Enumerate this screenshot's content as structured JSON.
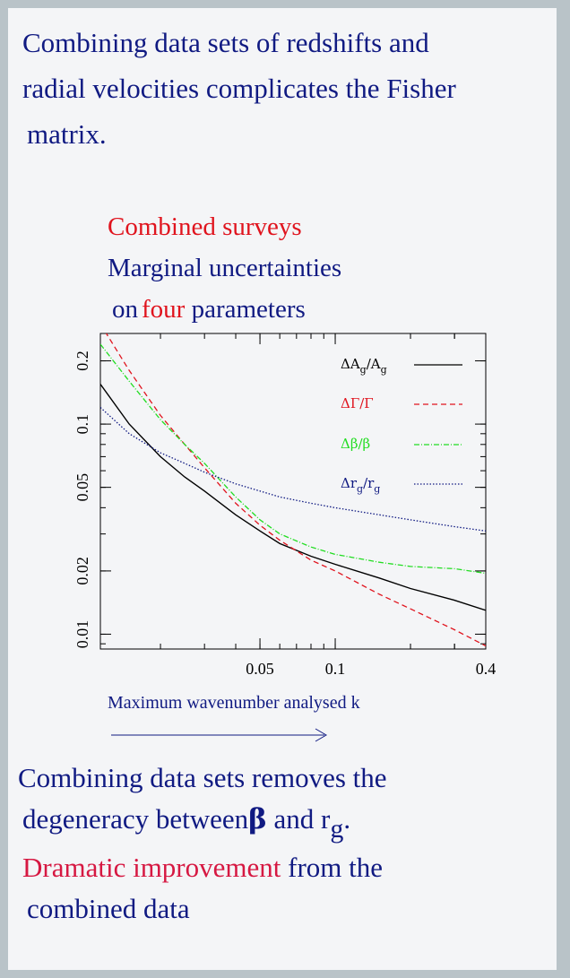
{
  "intro": {
    "line1": "Combining data sets of redshifts and",
    "line2": "radial velocities complicates the Fisher",
    "line3": "matrix."
  },
  "heading": {
    "line1": "Combined surveys",
    "line2": "Marginal uncertainties",
    "line3_on": "on",
    "line3_four": "four",
    "line3_rest": "parameters"
  },
  "colors": {
    "navy": "#101a82",
    "red": "#e0141e",
    "crimson": "#d61842",
    "green": "#22dd22",
    "background": "#b9c3c8"
  },
  "chart_data": {
    "type": "line",
    "xscale": "log",
    "yscale": "log",
    "xlim": [
      0.0115,
      0.4
    ],
    "ylim": [
      0.0085,
      0.27
    ],
    "xticks": [
      0.05,
      0.1,
      0.4
    ],
    "xtick_labels": [
      "0.05",
      "0.1",
      "0.4"
    ],
    "yticks": [
      0.01,
      0.02,
      0.05,
      0.1,
      0.2
    ],
    "ytick_labels": [
      "0.01",
      "0.02",
      "0.05",
      "0.1",
      "0.2"
    ],
    "xlabel": "Maximum wavenumber analysed k",
    "ylabel": "",
    "grid": false,
    "legend_position": "top-right",
    "series": [
      {
        "name": "ΔA_g/A_g",
        "label_main": "ΔA",
        "label_sub": "g",
        "label_main2": "/A",
        "label_sub2": "g",
        "color": "#000000",
        "dash": "solid",
        "x": [
          0.0115,
          0.015,
          0.02,
          0.025,
          0.03,
          0.04,
          0.05,
          0.06,
          0.08,
          0.1,
          0.15,
          0.2,
          0.3,
          0.4
        ],
        "y": [
          0.155,
          0.1,
          0.07,
          0.056,
          0.048,
          0.037,
          0.031,
          0.027,
          0.0235,
          0.0215,
          0.0185,
          0.0165,
          0.0145,
          0.013
        ]
      },
      {
        "name": "ΔΓ/Γ",
        "label_main": "ΔΓ/Γ",
        "color": "#e0141e",
        "dash": "dashed",
        "x": [
          0.0115,
          0.015,
          0.02,
          0.025,
          0.03,
          0.04,
          0.05,
          0.06,
          0.08,
          0.1,
          0.15,
          0.2,
          0.3,
          0.4
        ],
        "y": [
          0.3,
          0.18,
          0.11,
          0.08,
          0.062,
          0.042,
          0.033,
          0.028,
          0.0225,
          0.02,
          0.0155,
          0.0132,
          0.0105,
          0.0088
        ]
      },
      {
        "name": "Δβ/β",
        "label_main": "Δβ/β",
        "color": "#22dd22",
        "dash": "dash-dot",
        "x": [
          0.0115,
          0.015,
          0.02,
          0.025,
          0.03,
          0.04,
          0.05,
          0.06,
          0.08,
          0.1,
          0.15,
          0.2,
          0.3,
          0.4
        ],
        "y": [
          0.24,
          0.16,
          0.105,
          0.08,
          0.065,
          0.045,
          0.035,
          0.03,
          0.026,
          0.024,
          0.022,
          0.021,
          0.0205,
          0.0195
        ]
      },
      {
        "name": "Δr_g/r_g",
        "label_main": "Δr",
        "label_sub": "g",
        "label_main2": "/r",
        "label_sub2": "g",
        "color": "#101a82",
        "dash": "dotted",
        "x": [
          0.0115,
          0.015,
          0.02,
          0.025,
          0.03,
          0.04,
          0.05,
          0.06,
          0.08,
          0.1,
          0.15,
          0.2,
          0.3,
          0.4
        ],
        "y": [
          0.12,
          0.09,
          0.073,
          0.065,
          0.059,
          0.052,
          0.048,
          0.045,
          0.042,
          0.04,
          0.037,
          0.035,
          0.0325,
          0.031
        ]
      }
    ]
  },
  "outro": {
    "line1": "Combining data sets removes the",
    "line2a": "degeneracy between",
    "line2_beta": "β",
    "line2b": " and r",
    "line2_sub": "g",
    "line2_end": ".",
    "line3a": "Dramatic improvement",
    "line3b": " from the",
    "line4": "combined data"
  }
}
